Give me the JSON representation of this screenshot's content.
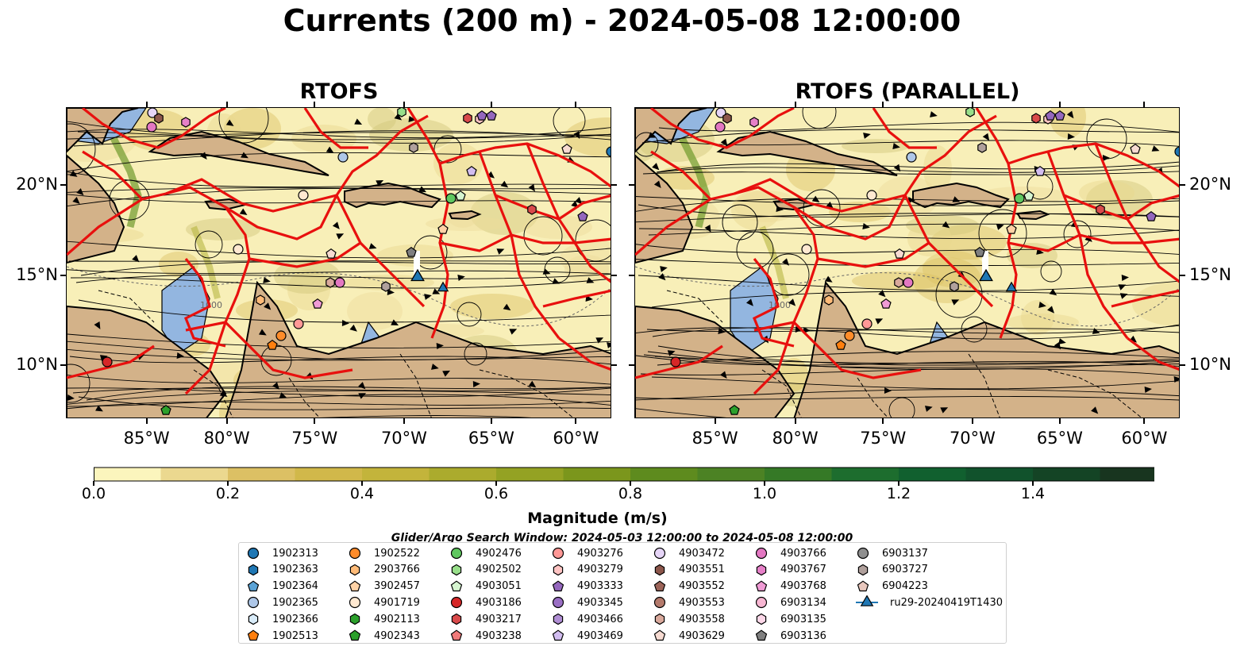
{
  "title": "Currents (200 m) - 2024-05-08 12:00:00",
  "panels": [
    {
      "title": "RTOFS"
    },
    {
      "title": "RTOFS (PARALLEL)"
    }
  ],
  "x_ticks": [
    "85°W",
    "80°W",
    "75°W",
    "70°W",
    "65°W",
    "60°W"
  ],
  "y_ticks": [
    "20°N",
    "15°N",
    "10°N"
  ],
  "contour_label": "1000",
  "colorbar": {
    "label": "Magnitude (m/s)",
    "ticks": [
      "0.0",
      "0.2",
      "0.4",
      "0.6",
      "0.8",
      "1.0",
      "1.2",
      "1.4"
    ],
    "colors": [
      "#fbf5bd",
      "#ebd88f",
      "#dcc064",
      "#d1b84a",
      "#c3b43b",
      "#abab2d",
      "#94a223",
      "#7b961c",
      "#5e8b1e",
      "#4c8224",
      "#357926",
      "#1d6d2e",
      "#11602f",
      "#11522c",
      "#144425",
      "#18351f",
      "#1a261a"
    ]
  },
  "search_window": "Glider/Argo Search Window: 2024-05-03 12:00:00 to 2024-05-08 12:00:00",
  "legend": [
    {
      "label": "1902313",
      "shape": "circle",
      "color": "#1f77b4"
    },
    {
      "label": "1902363",
      "shape": "hexagon",
      "color": "#1f77b4"
    },
    {
      "label": "1902364",
      "shape": "pentagon",
      "color": "#5ba3d6"
    },
    {
      "label": "1902365",
      "shape": "circle",
      "color": "#aec7e8"
    },
    {
      "label": "1902366",
      "shape": "hexagon",
      "color": "#d9ecfa"
    },
    {
      "label": "1902513",
      "shape": "pentagon",
      "color": "#ff7f0e"
    },
    {
      "label": "1902522",
      "shape": "circle",
      "color": "#ff8c2a"
    },
    {
      "label": "2903766",
      "shape": "hexagon",
      "color": "#ffbb78"
    },
    {
      "label": "3902457",
      "shape": "pentagon",
      "color": "#ffd2a6"
    },
    {
      "label": "4901719",
      "shape": "circle",
      "color": "#ffe9d1"
    },
    {
      "label": "4902113",
      "shape": "hexagon",
      "color": "#2ca02c"
    },
    {
      "label": "4902343",
      "shape": "pentagon",
      "color": "#2ca02c"
    },
    {
      "label": "4902476",
      "shape": "circle",
      "color": "#5fc75f"
    },
    {
      "label": "4902502",
      "shape": "hexagon",
      "color": "#98df8a"
    },
    {
      "label": "4903051",
      "shape": "pentagon",
      "color": "#d6f5d0"
    },
    {
      "label": "4903186",
      "shape": "circle",
      "color": "#d62728"
    },
    {
      "label": "4903217",
      "shape": "hexagon",
      "color": "#d94a4b"
    },
    {
      "label": "4903238",
      "shape": "pentagon",
      "color": "#f07a7a"
    },
    {
      "label": "4903276",
      "shape": "circle",
      "color": "#ff9896"
    },
    {
      "label": "4903279",
      "shape": "hexagon",
      "color": "#ffc4c3"
    },
    {
      "label": "4903333",
      "shape": "pentagon",
      "color": "#9467bd"
    },
    {
      "label": "4903345",
      "shape": "circle",
      "color": "#9a6fc4"
    },
    {
      "label": "4903466",
      "shape": "hexagon",
      "color": "#b08ed4"
    },
    {
      "label": "4903469",
      "shape": "pentagon",
      "color": "#d2bdf0"
    },
    {
      "label": "4903472",
      "shape": "circle",
      "color": "#e6d5f7"
    },
    {
      "label": "4903551",
      "shape": "hexagon",
      "color": "#8c564b"
    },
    {
      "label": "4903552",
      "shape": "pentagon",
      "color": "#9c6459"
    },
    {
      "label": "4903553",
      "shape": "circle",
      "color": "#b47a6c"
    },
    {
      "label": "4903558",
      "shape": "hexagon",
      "color": "#d9a99c"
    },
    {
      "label": "4903629",
      "shape": "pentagon",
      "color": "#f7dbd2"
    },
    {
      "label": "4903766",
      "shape": "circle",
      "color": "#e377c2"
    },
    {
      "label": "4903767",
      "shape": "hexagon",
      "color": "#e680c8"
    },
    {
      "label": "4903768",
      "shape": "pentagon",
      "color": "#f09bd5"
    },
    {
      "label": "6903134",
      "shape": "circle",
      "color": "#f7b6d2"
    },
    {
      "label": "6903135",
      "shape": "hexagon",
      "color": "#fcd7e8"
    },
    {
      "label": "6903136",
      "shape": "pentagon",
      "color": "#7f7f7f"
    },
    {
      "label": "6903137",
      "shape": "circle",
      "color": "#8f8f8f"
    },
    {
      "label": "6903727",
      "shape": "hexagon",
      "color": "#b0a09c"
    },
    {
      "label": "6904223",
      "shape": "pentagon",
      "color": "#e8c7bd"
    },
    {
      "label": "ru29-20240419T1430",
      "shape": "triangle-line",
      "color": "#1f77b4"
    }
  ]
}
